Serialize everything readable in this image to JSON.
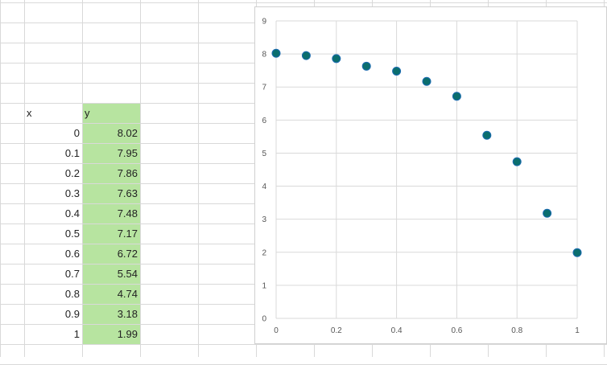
{
  "spreadsheet": {
    "headers": {
      "x": "x",
      "y": "y"
    },
    "rows": [
      {
        "x": "0",
        "y": "8.02"
      },
      {
        "x": "0.1",
        "y": "7.95"
      },
      {
        "x": "0.2",
        "y": "7.86"
      },
      {
        "x": "0.3",
        "y": "7.63"
      },
      {
        "x": "0.4",
        "y": "7.48"
      },
      {
        "x": "0.5",
        "y": "7.17"
      },
      {
        "x": "0.6",
        "y": "6.72"
      },
      {
        "x": "0.7",
        "y": "5.54"
      },
      {
        "x": "0.8",
        "y": "4.74"
      },
      {
        "x": "0.9",
        "y": "3.18"
      },
      {
        "x": "1",
        "y": "1.99"
      }
    ],
    "highlight_color": "#b7e4a0"
  },
  "chart_data": {
    "type": "scatter",
    "title": "",
    "xlabel": "",
    "ylabel": "",
    "xlim": [
      0,
      1
    ],
    "ylim": [
      0,
      9
    ],
    "x_ticks": [
      "0",
      "0.2",
      "0.4",
      "0.6",
      "0.8",
      "1"
    ],
    "y_ticks": [
      "0",
      "1",
      "2",
      "3",
      "4",
      "5",
      "6",
      "7",
      "8",
      "9"
    ],
    "grid": true,
    "marker_color": "#0b6e6e",
    "marker_edge_color": "#1b6bb0",
    "series": [
      {
        "x": [
          0,
          0.1,
          0.2,
          0.3,
          0.4,
          0.5,
          0.6,
          0.7,
          0.8,
          0.9,
          1
        ],
        "y": [
          8.02,
          7.95,
          7.86,
          7.63,
          7.48,
          7.17,
          6.72,
          5.54,
          4.74,
          3.18,
          1.99
        ]
      }
    ]
  }
}
